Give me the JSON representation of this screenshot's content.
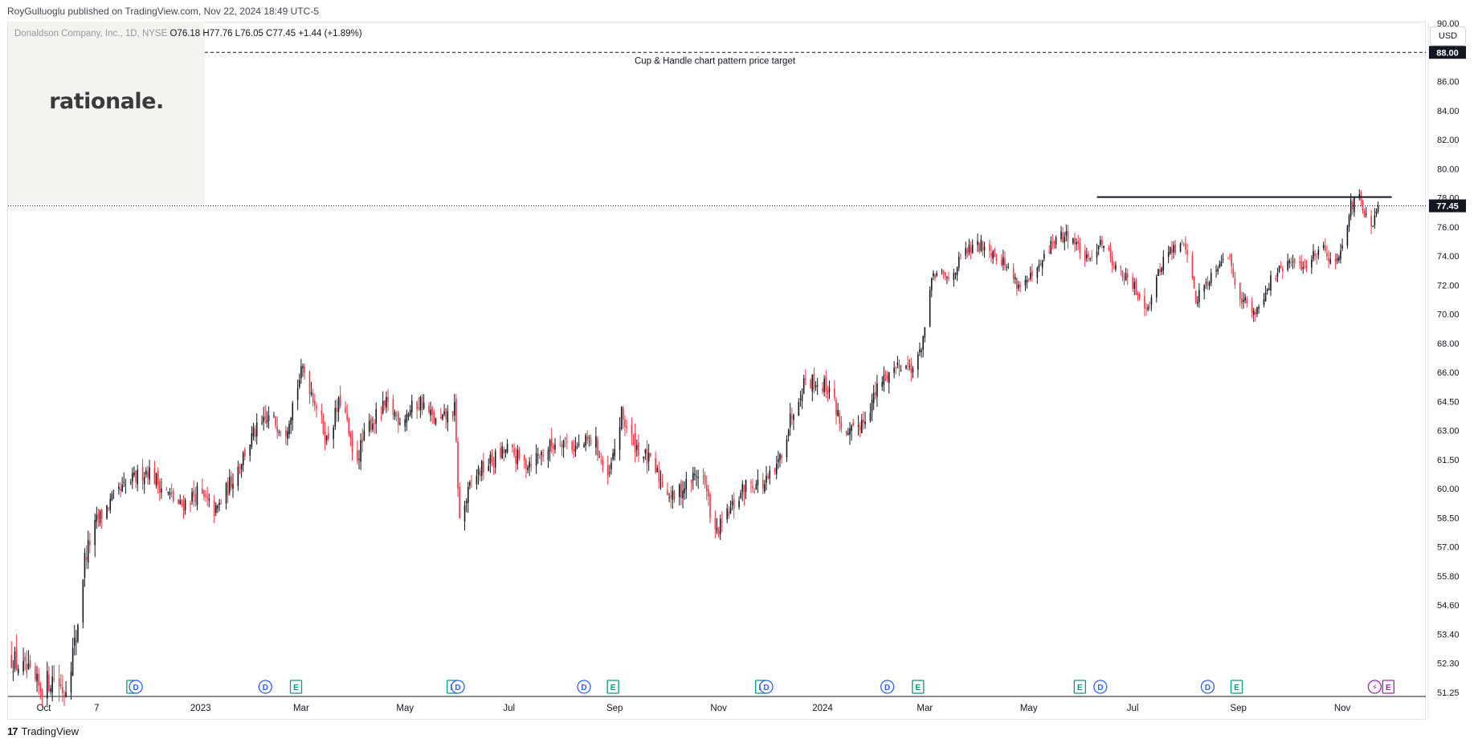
{
  "header": {
    "published": "RoyGulluoglu published on TradingView.com, Nov 22, 2024 18:49 UTC-5",
    "symbol": "Donaldson Company, Inc., 1D, NYSE",
    "ohlc": "O76.18 H77.76 L76.05 C77.45 +1.44 (+1.89%)"
  },
  "logo": {
    "text": "rationale."
  },
  "currency": "USD",
  "footer": {
    "brand": "TradingView"
  },
  "colors": {
    "up": "#131722",
    "down": "#f23645",
    "dividend": "#2962ff",
    "earnings": "#089981",
    "upcoming": "#9c27b0"
  },
  "chart_data": {
    "type": "candlestick",
    "y_ticks": [
      51.25,
      52.3,
      53.4,
      54.6,
      55.8,
      57.0,
      58.5,
      60.0,
      61.5,
      63.0,
      64.5,
      66.0,
      68.0,
      70.0,
      72.0,
      74.0,
      76.0,
      78.0,
      80.0,
      82.0,
      84.0,
      86.0,
      88.0,
      90.0
    ],
    "y_tick_labels": [
      "51.25",
      "52.30",
      "53.40",
      "54.60",
      "55.80",
      "57.00",
      "58.50",
      "60.00",
      "61.50",
      "63.00",
      "64.50",
      "66.00",
      "68.00",
      "70.00",
      "72.00",
      "74.00",
      "76.00",
      "78.00",
      "80.00",
      "82.00",
      "84.00",
      "86.00",
      "88.00",
      "90.00"
    ],
    "x_labels": [
      "Oct",
      "7",
      "2023",
      "Mar",
      "May",
      "Jul",
      "Sep",
      "Nov",
      "2024",
      "Mar",
      "May",
      "Jul",
      "Sep",
      "Nov"
    ],
    "x_label_dates": [
      "2022-10-01",
      "2022-11-01",
      "2023-01-01",
      "2023-03-01",
      "2023-05-01",
      "2023-07-01",
      "2023-09-01",
      "2023-11-01",
      "2024-01-01",
      "2024-03-01",
      "2024-05-01",
      "2024-07-01",
      "2024-09-01",
      "2024-11-01"
    ],
    "x_range": [
      "2022-09-10",
      "2024-12-20"
    ],
    "last_price": 77.45,
    "last_price_label": "77.45",
    "price_target": 88.0,
    "price_target_label": "88.00",
    "price_target_annotation": "Cup & Handle chart pattern price target",
    "resistance_line": {
      "value": 78.05,
      "from": "2024-06-10",
      "to": "2024-11-30"
    },
    "anchors": [
      [
        "2022-09-12",
        52.5
      ],
      [
        "2022-09-20",
        52.0
      ],
      [
        "2022-09-28",
        51.4
      ],
      [
        "2022-10-07",
        51.8
      ],
      [
        "2022-10-13",
        51.3
      ],
      [
        "2022-10-20",
        53.3
      ],
      [
        "2022-10-25",
        56.5
      ],
      [
        "2022-11-01",
        58.3
      ],
      [
        "2022-11-10",
        59.4
      ],
      [
        "2022-11-20",
        60.3
      ],
      [
        "2022-12-01",
        61.0
      ],
      [
        "2022-12-10",
        60.0
      ],
      [
        "2022-12-20",
        59.1
      ],
      [
        "2022-12-30",
        59.8
      ],
      [
        "2023-01-10",
        58.8
      ],
      [
        "2023-01-20",
        60.6
      ],
      [
        "2023-02-01",
        62.8
      ],
      [
        "2023-02-10",
        63.6
      ],
      [
        "2023-02-20",
        63.1
      ],
      [
        "2023-03-02",
        66.3
      ],
      [
        "2023-03-10",
        64.3
      ],
      [
        "2023-03-16",
        62.5
      ],
      [
        "2023-03-25",
        64.8
      ],
      [
        "2023-04-01",
        61.2
      ],
      [
        "2023-04-10",
        63.3
      ],
      [
        "2023-04-20",
        64.3
      ],
      [
        "2023-04-28",
        63.6
      ],
      [
        "2023-05-10",
        64.5
      ],
      [
        "2023-05-20",
        63.3
      ],
      [
        "2023-05-30",
        64.1
      ],
      [
        "2023-06-02",
        58.3
      ],
      [
        "2023-06-10",
        60.6
      ],
      [
        "2023-06-20",
        61.4
      ],
      [
        "2023-06-30",
        62.0
      ],
      [
        "2023-07-10",
        61.3
      ],
      [
        "2023-07-20",
        61.8
      ],
      [
        "2023-07-31",
        62.6
      ],
      [
        "2023-08-10",
        62.1
      ],
      [
        "2023-08-20",
        62.6
      ],
      [
        "2023-08-28",
        60.3
      ],
      [
        "2023-09-05",
        63.8
      ],
      [
        "2023-09-12",
        62.4
      ],
      [
        "2023-09-22",
        61.3
      ],
      [
        "2023-10-05",
        59.5
      ],
      [
        "2023-10-15",
        60.4
      ],
      [
        "2023-10-22",
        61.0
      ],
      [
        "2023-10-30",
        57.6
      ],
      [
        "2023-11-08",
        58.9
      ],
      [
        "2023-11-18",
        60.3
      ],
      [
        "2023-11-28",
        60.2
      ],
      [
        "2023-12-05",
        61.0
      ],
      [
        "2023-12-15",
        64.2
      ],
      [
        "2023-12-22",
        65.7
      ],
      [
        "2024-01-05",
        65.2
      ],
      [
        "2024-01-15",
        62.5
      ],
      [
        "2024-01-25",
        63.6
      ],
      [
        "2024-02-05",
        65.6
      ],
      [
        "2024-02-15",
        66.6
      ],
      [
        "2024-02-25",
        66.3
      ],
      [
        "2024-03-01",
        69.0
      ],
      [
        "2024-03-06",
        72.8
      ],
      [
        "2024-03-15",
        72.4
      ],
      [
        "2024-03-25",
        74.3
      ],
      [
        "2024-04-05",
        74.8
      ],
      [
        "2024-04-15",
        73.8
      ],
      [
        "2024-04-25",
        72.0
      ],
      [
        "2024-05-05",
        72.6
      ],
      [
        "2024-05-15",
        75.0
      ],
      [
        "2024-05-25",
        75.5
      ],
      [
        "2024-06-05",
        73.5
      ],
      [
        "2024-06-12",
        75.2
      ],
      [
        "2024-06-22",
        73.1
      ],
      [
        "2024-07-02",
        71.8
      ],
      [
        "2024-07-10",
        70.5
      ],
      [
        "2024-07-20",
        74.2
      ],
      [
        "2024-08-01",
        74.8
      ],
      [
        "2024-08-07",
        71.0
      ],
      [
        "2024-08-15",
        72.5
      ],
      [
        "2024-08-25",
        74.5
      ],
      [
        "2024-09-01",
        71.5
      ],
      [
        "2024-09-10",
        70.0
      ],
      [
        "2024-09-20",
        72.3
      ],
      [
        "2024-09-30",
        73.5
      ],
      [
        "2024-10-10",
        73.3
      ],
      [
        "2024-10-20",
        74.8
      ],
      [
        "2024-10-28",
        73.3
      ],
      [
        "2024-11-06",
        77.4
      ],
      [
        "2024-11-11",
        77.9
      ],
      [
        "2024-11-18",
        75.6
      ],
      [
        "2024-11-22",
        77.45
      ]
    ],
    "event_markers": [
      {
        "label": "E",
        "date": "2022-11-22",
        "kind": "earnings"
      },
      {
        "label": "D",
        "date": "2022-11-24",
        "kind": "dividend"
      },
      {
        "label": "D",
        "date": "2023-02-08",
        "kind": "dividend"
      },
      {
        "label": "E",
        "date": "2023-02-26",
        "kind": "earnings"
      },
      {
        "label": "E",
        "date": "2023-05-29",
        "kind": "earnings"
      },
      {
        "label": "D",
        "date": "2023-06-01",
        "kind": "dividend"
      },
      {
        "label": "D",
        "date": "2023-08-14",
        "kind": "dividend"
      },
      {
        "label": "E",
        "date": "2023-08-31",
        "kind": "earnings"
      },
      {
        "label": "E",
        "date": "2023-11-26",
        "kind": "earnings"
      },
      {
        "label": "D",
        "date": "2023-11-29",
        "kind": "dividend"
      },
      {
        "label": "D",
        "date": "2024-02-08",
        "kind": "dividend"
      },
      {
        "label": "E",
        "date": "2024-02-26",
        "kind": "earnings"
      },
      {
        "label": "E",
        "date": "2024-05-31",
        "kind": "earnings"
      },
      {
        "label": "D",
        "date": "2024-06-12",
        "kind": "dividend"
      },
      {
        "label": "D",
        "date": "2024-08-14",
        "kind": "dividend"
      },
      {
        "label": "E",
        "date": "2024-08-31",
        "kind": "earnings"
      },
      {
        "label": "⚡",
        "date": "2024-11-20",
        "kind": "upcoming"
      },
      {
        "label": "E",
        "date": "2024-11-28",
        "kind": "upcoming"
      }
    ]
  }
}
